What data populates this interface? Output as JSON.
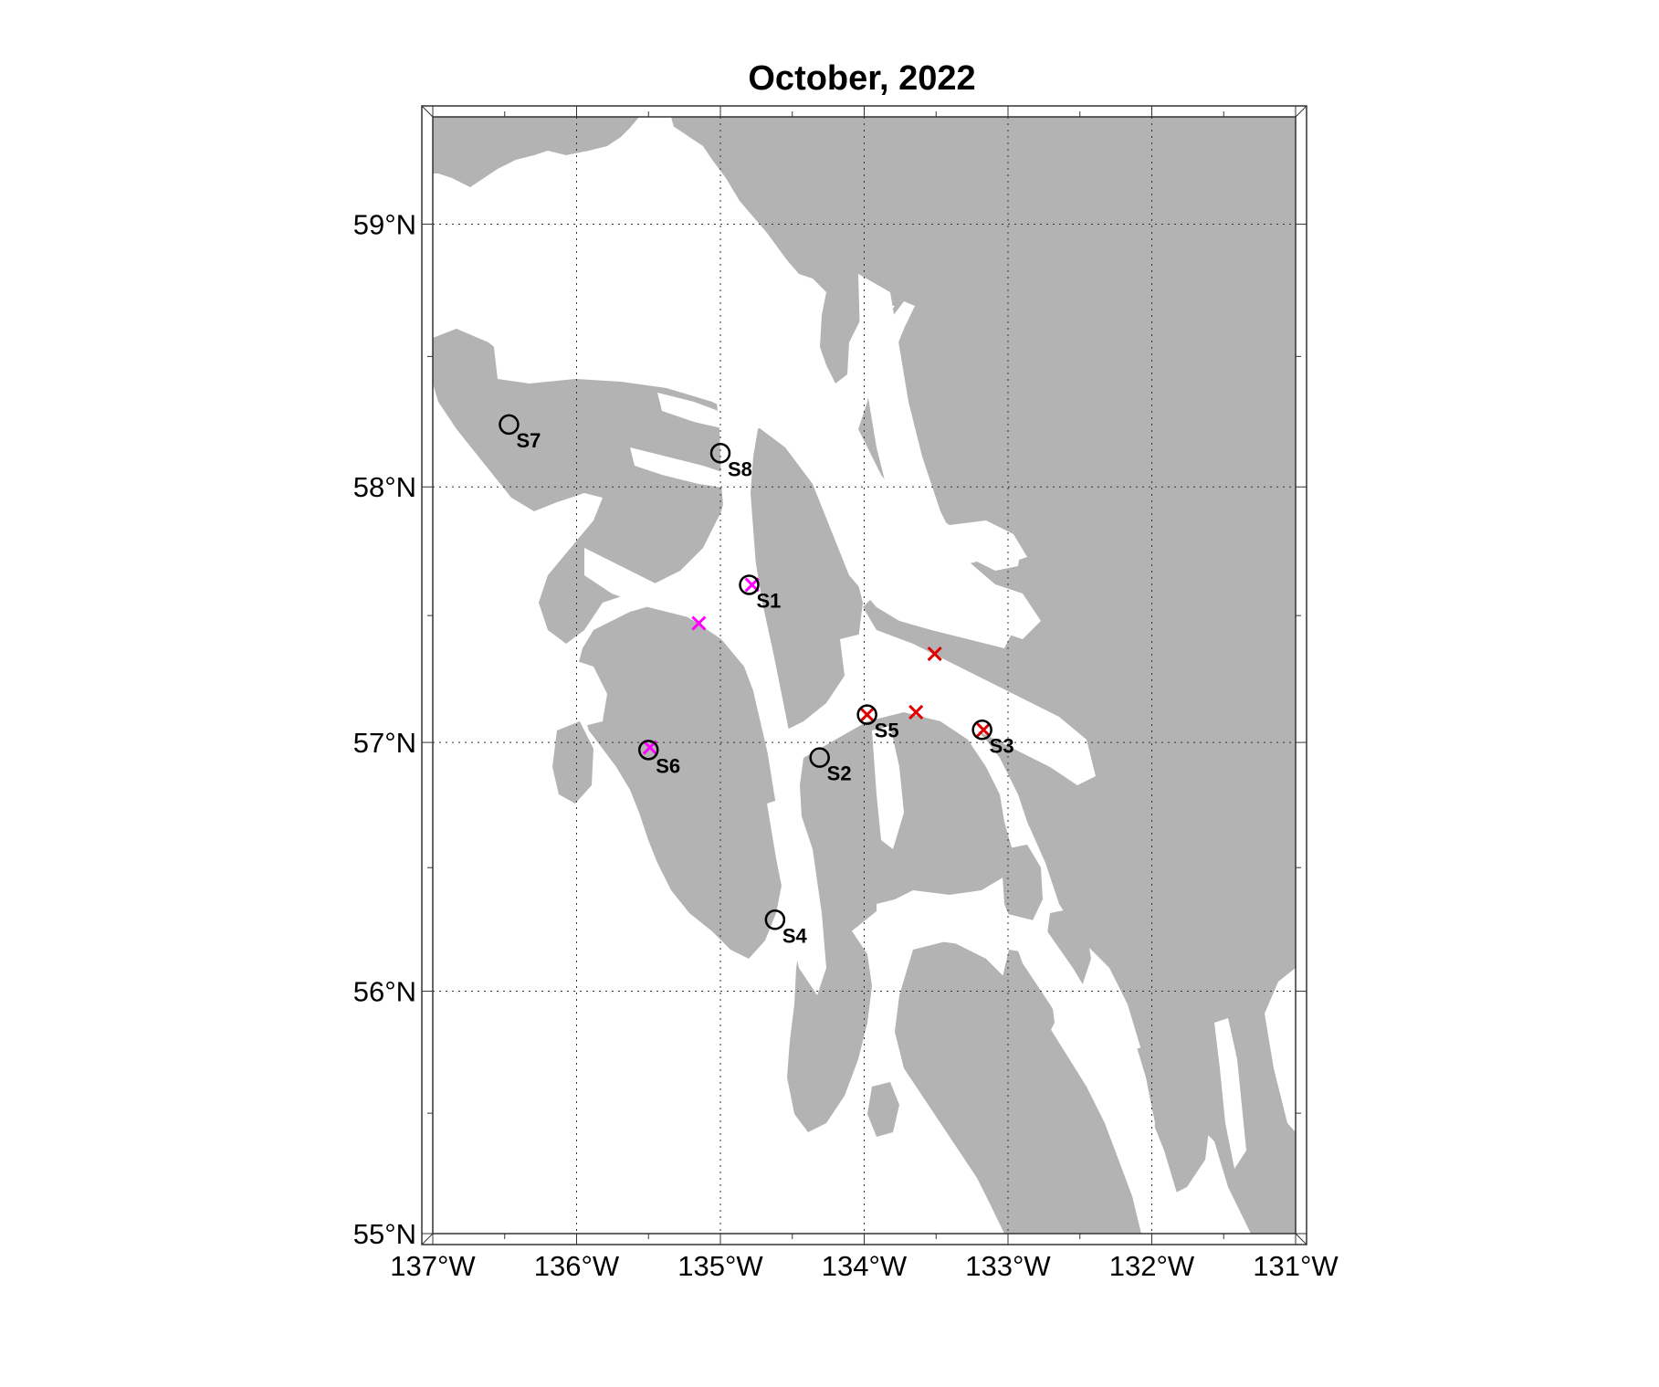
{
  "title": "October, 2022",
  "map": {
    "lon_range": [
      -137,
      -131
    ],
    "lat_range": [
      55,
      59.4
    ],
    "lon_ticks": [
      -137,
      -136,
      -135,
      -134,
      -133,
      -132,
      -131
    ],
    "lat_ticks": [
      55,
      56,
      57,
      58,
      59
    ],
    "lon_tick_labels": [
      "137°W",
      "136°W",
      "135°W",
      "134°W",
      "133°W",
      "132°W",
      "131°W"
    ],
    "lat_tick_labels": [
      "55°N",
      "56°N",
      "57°N",
      "58°N",
      "59°N"
    ],
    "grid": "dotted",
    "land_color": "#b3b3b3",
    "water_color": "#ffffff"
  },
  "stations": [
    {
      "name": "S1",
      "lon": -134.8,
      "lat": 57.62
    },
    {
      "name": "S2",
      "lon": -134.31,
      "lat": 56.94
    },
    {
      "name": "S3",
      "lon": -133.18,
      "lat": 57.05
    },
    {
      "name": "S4",
      "lon": -134.62,
      "lat": 56.29
    },
    {
      "name": "S5",
      "lon": -133.98,
      "lat": 57.11
    },
    {
      "name": "S6",
      "lon": -135.5,
      "lat": 56.97
    },
    {
      "name": "S7",
      "lon": -136.47,
      "lat": 58.24
    },
    {
      "name": "S8",
      "lon": -135.0,
      "lat": 58.13
    }
  ],
  "markers": [
    {
      "lon": -134.78,
      "lat": 57.62,
      "color": "#ff00ff"
    },
    {
      "lon": -135.15,
      "lat": 57.47,
      "color": "#ff00ff"
    },
    {
      "lon": -135.49,
      "lat": 56.98,
      "color": "#ff00ff"
    },
    {
      "lon": -133.51,
      "lat": 57.35,
      "color": "#e00000"
    },
    {
      "lon": -133.64,
      "lat": 57.12,
      "color": "#e00000"
    },
    {
      "lon": -133.98,
      "lat": 57.11,
      "color": "#e00000"
    },
    {
      "lon": -133.17,
      "lat": 57.05,
      "color": "#e00000"
    }
  ]
}
